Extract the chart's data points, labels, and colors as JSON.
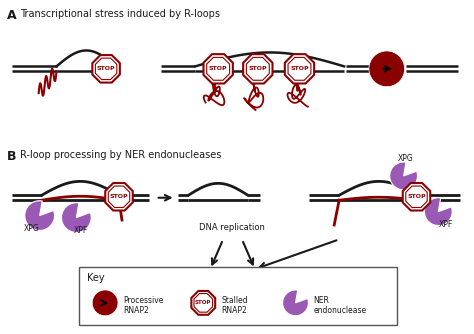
{
  "title_A": "Transcriptional stress induced by R-loops",
  "title_B": "R-loop processing by NER endonucleases",
  "label_A": "A",
  "label_B": "B",
  "dark_red": "#8B0000",
  "purple": "#9B59B6",
  "black": "#1a1a1a",
  "bg_color": "#ffffff",
  "key_label": "Key",
  "key_text1": "Processive\nRNAP2",
  "key_text2": "Stalled\nRNAP2",
  "key_text3": "NER\nendonuclease",
  "dna_replication": "DNA replication"
}
